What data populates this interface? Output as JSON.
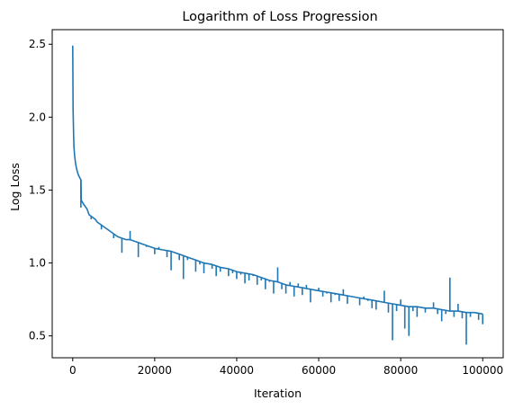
{
  "chart_data": {
    "type": "line",
    "title": "Logarithm of Loss Progression",
    "xlabel": "Iteration",
    "ylabel": "Log Loss",
    "xlim": [
      -5000,
      105000
    ],
    "ylim": [
      0.35,
      2.6
    ],
    "x_ticks": [
      0,
      20000,
      40000,
      60000,
      80000,
      100000
    ],
    "x_tick_labels": [
      "0",
      "20000",
      "40000",
      "60000",
      "80000",
      "100000"
    ],
    "y_ticks": [
      0.5,
      1.0,
      1.5,
      2.0,
      2.5
    ],
    "y_tick_labels": [
      "0.5",
      "1.0",
      "1.5",
      "2.0",
      "2.5"
    ],
    "grid": false,
    "legend": "none",
    "series": [
      {
        "color": "#1f77b4",
        "x": [
          0,
          100,
          200,
          300,
          500,
          700,
          1000,
          1300,
          1600,
          2000,
          2100,
          2500,
          3000,
          3500,
          4000,
          4500,
          5000,
          5500,
          6000,
          7000,
          8000,
          9000,
          10000,
          11000,
          12000,
          13000,
          14000,
          15000,
          16000,
          17000,
          18000,
          20000,
          22000,
          24000,
          26000,
          28000,
          30000,
          32000,
          34000,
          36000,
          38000,
          40000,
          42000,
          44000,
          46000,
          48000,
          50000,
          52000,
          54000,
          56000,
          58000,
          60000,
          62000,
          64000,
          66000,
          68000,
          70000,
          72000,
          74000,
          76000,
          78000,
          80000,
          82000,
          84000,
          86000,
          88000,
          90000,
          92000,
          94000,
          96000,
          98000,
          100000
        ],
        "y": [
          2.49,
          2.05,
          1.9,
          1.8,
          1.73,
          1.68,
          1.64,
          1.61,
          1.59,
          1.57,
          1.43,
          1.41,
          1.39,
          1.37,
          1.33,
          1.32,
          1.31,
          1.3,
          1.28,
          1.26,
          1.24,
          1.22,
          1.2,
          1.18,
          1.17,
          1.16,
          1.16,
          1.15,
          1.14,
          1.13,
          1.12,
          1.1,
          1.09,
          1.08,
          1.06,
          1.04,
          1.02,
          1.0,
          0.99,
          0.97,
          0.96,
          0.94,
          0.93,
          0.92,
          0.9,
          0.88,
          0.87,
          0.85,
          0.84,
          0.83,
          0.82,
          0.81,
          0.8,
          0.79,
          0.78,
          0.77,
          0.76,
          0.75,
          0.74,
          0.73,
          0.72,
          0.71,
          0.7,
          0.7,
          0.69,
          0.69,
          0.68,
          0.67,
          0.67,
          0.66,
          0.66,
          0.65
        ]
      }
    ],
    "spikes": [
      {
        "x": 2000,
        "y": 1.38
      },
      {
        "x": 4500,
        "y": 1.3
      },
      {
        "x": 7000,
        "y": 1.23
      },
      {
        "x": 10000,
        "y": 1.17
      },
      {
        "x": 12000,
        "y": 1.07
      },
      {
        "x": 14000,
        "y": 1.22
      },
      {
        "x": 16000,
        "y": 1.04
      },
      {
        "x": 18000,
        "y": 1.11
      },
      {
        "x": 20000,
        "y": 1.06
      },
      {
        "x": 21000,
        "y": 1.11
      },
      {
        "x": 23000,
        "y": 1.04
      },
      {
        "x": 24000,
        "y": 0.95
      },
      {
        "x": 26000,
        "y": 1.02
      },
      {
        "x": 27000,
        "y": 0.89
      },
      {
        "x": 28000,
        "y": 1.02
      },
      {
        "x": 30000,
        "y": 0.94
      },
      {
        "x": 31000,
        "y": 0.99
      },
      {
        "x": 32000,
        "y": 0.93
      },
      {
        "x": 34000,
        "y": 0.96
      },
      {
        "x": 35000,
        "y": 0.91
      },
      {
        "x": 36000,
        "y": 0.94
      },
      {
        "x": 37000,
        "y": 0.96
      },
      {
        "x": 38000,
        "y": 0.91
      },
      {
        "x": 39000,
        "y": 0.93
      },
      {
        "x": 40000,
        "y": 0.89
      },
      {
        "x": 41000,
        "y": 0.92
      },
      {
        "x": 42000,
        "y": 0.86
      },
      {
        "x": 43000,
        "y": 0.88
      },
      {
        "x": 44000,
        "y": 0.91
      },
      {
        "x": 45000,
        "y": 0.85
      },
      {
        "x": 46000,
        "y": 0.88
      },
      {
        "x": 47000,
        "y": 0.82
      },
      {
        "x": 48000,
        "y": 0.87
      },
      {
        "x": 49000,
        "y": 0.79
      },
      {
        "x": 50000,
        "y": 0.97
      },
      {
        "x": 51000,
        "y": 0.82
      },
      {
        "x": 52000,
        "y": 0.79
      },
      {
        "x": 53000,
        "y": 0.87
      },
      {
        "x": 54000,
        "y": 0.77
      },
      {
        "x": 55000,
        "y": 0.86
      },
      {
        "x": 56000,
        "y": 0.78
      },
      {
        "x": 57000,
        "y": 0.85
      },
      {
        "x": 58000,
        "y": 0.73
      },
      {
        "x": 60000,
        "y": 0.83
      },
      {
        "x": 61000,
        "y": 0.77
      },
      {
        "x": 62000,
        "y": 0.79
      },
      {
        "x": 63000,
        "y": 0.73
      },
      {
        "x": 64000,
        "y": 0.78
      },
      {
        "x": 65000,
        "y": 0.74
      },
      {
        "x": 66000,
        "y": 0.82
      },
      {
        "x": 67000,
        "y": 0.72
      },
      {
        "x": 68000,
        "y": 0.77
      },
      {
        "x": 70000,
        "y": 0.71
      },
      {
        "x": 71000,
        "y": 0.77
      },
      {
        "x": 72000,
        "y": 0.74
      },
      {
        "x": 73000,
        "y": 0.69
      },
      {
        "x": 74000,
        "y": 0.68
      },
      {
        "x": 76000,
        "y": 0.81
      },
      {
        "x": 77000,
        "y": 0.66
      },
      {
        "x": 78000,
        "y": 0.47
      },
      {
        "x": 79000,
        "y": 0.67
      },
      {
        "x": 80000,
        "y": 0.75
      },
      {
        "x": 81000,
        "y": 0.55
      },
      {
        "x": 82000,
        "y": 0.5
      },
      {
        "x": 83000,
        "y": 0.67
      },
      {
        "x": 84000,
        "y": 0.63
      },
      {
        "x": 86000,
        "y": 0.66
      },
      {
        "x": 88000,
        "y": 0.73
      },
      {
        "x": 89000,
        "y": 0.65
      },
      {
        "x": 90000,
        "y": 0.6
      },
      {
        "x": 91000,
        "y": 0.65
      },
      {
        "x": 92000,
        "y": 0.9
      },
      {
        "x": 93000,
        "y": 0.63
      },
      {
        "x": 94000,
        "y": 0.72
      },
      {
        "x": 95000,
        "y": 0.62
      },
      {
        "x": 96000,
        "y": 0.44
      },
      {
        "x": 97000,
        "y": 0.63
      },
      {
        "x": 98000,
        "y": 0.66
      },
      {
        "x": 99000,
        "y": 0.61
      },
      {
        "x": 100000,
        "y": 0.58
      }
    ]
  }
}
